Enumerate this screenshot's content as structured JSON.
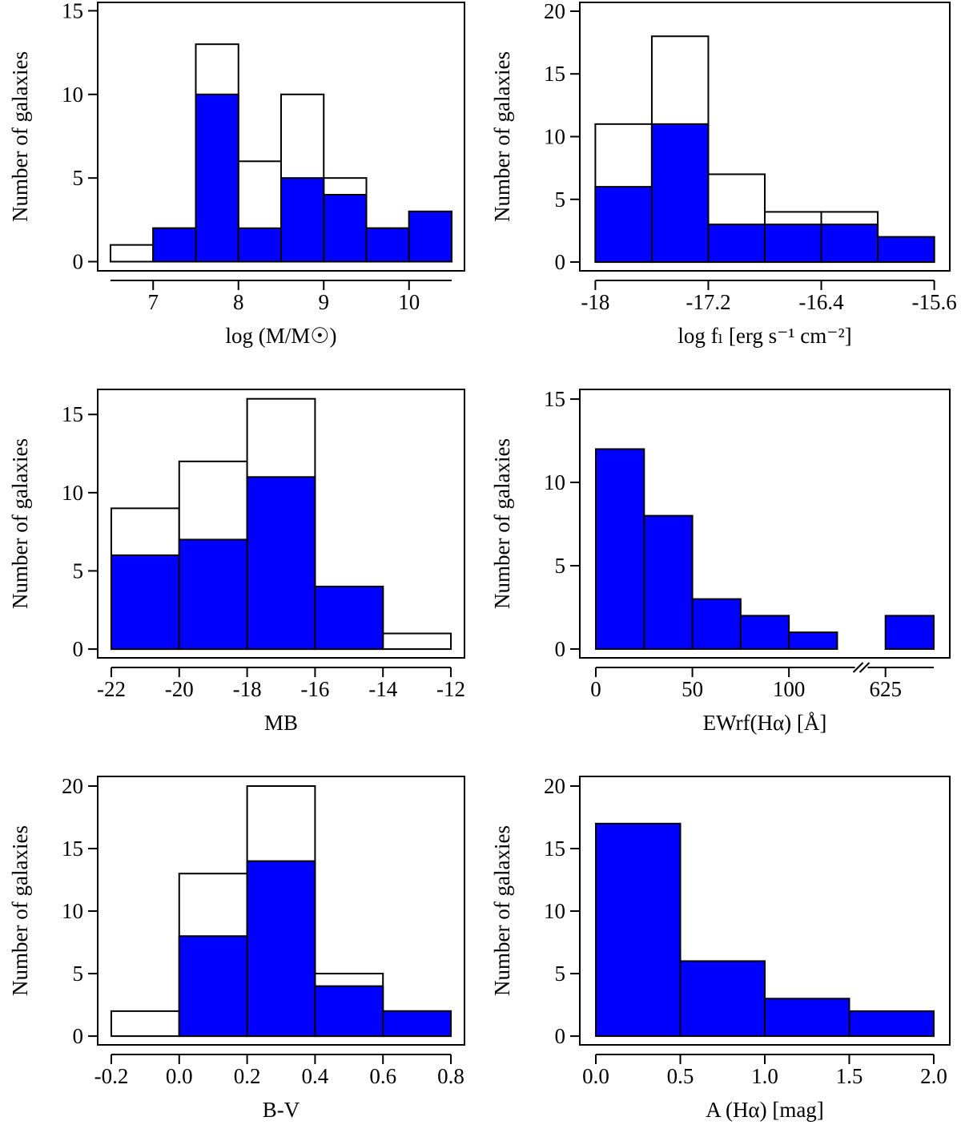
{
  "chart_data": [
    {
      "type": "histogram",
      "x_label": "log (M/M☉)",
      "y_label": "Number of galaxies",
      "bins": [
        6.5,
        7,
        7.5,
        8,
        8.5,
        9,
        9.5,
        10,
        10.5
      ],
      "series": [
        {
          "color": "#ffffff",
          "values": [
            1,
            2,
            13,
            6,
            10,
            5,
            2,
            3
          ]
        },
        {
          "color": "#0000ff",
          "values": [
            0,
            2,
            10,
            2,
            5,
            4,
            2,
            3
          ]
        }
      ],
      "xlim": [
        6.35,
        10.65
      ],
      "ylim": [
        -0.55,
        15.5
      ],
      "xticks": [
        7,
        8,
        9,
        10
      ],
      "yticks": [
        0,
        5,
        10,
        15
      ]
    },
    {
      "type": "histogram",
      "x_label": "log fₗ [erg s⁻¹ cm⁻²]",
      "y_label": "Number of galaxies",
      "bins": [
        -18,
        -17.6,
        -17.2,
        -16.8,
        -16.4,
        -16,
        -15.6
      ],
      "series": [
        {
          "color": "#ffffff",
          "values": [
            11,
            18,
            7,
            4,
            4,
            2
          ]
        },
        {
          "color": "#0000ff",
          "values": [
            6,
            11,
            3,
            3,
            3,
            2
          ]
        }
      ],
      "xlim": [
        -18.11,
        -15.49
      ],
      "ylim": [
        -0.7,
        20.7
      ],
      "xticks": [
        -18,
        -17.2,
        -16.4,
        -15.6
      ],
      "yticks": [
        0,
        5,
        10,
        15,
        20
      ]
    },
    {
      "type": "histogram",
      "x_label": "MB",
      "y_label": "Number of galaxies",
      "bins": [
        -22,
        -20,
        -18,
        -16,
        -14,
        -12
      ],
      "series": [
        {
          "color": "#ffffff",
          "values": [
            9,
            12,
            16,
            4,
            1
          ]
        },
        {
          "color": "#0000ff",
          "values": [
            6,
            7,
            11,
            4,
            0
          ]
        }
      ],
      "xlim": [
        -22.4,
        -11.6
      ],
      "ylim": [
        -0.56,
        16.6
      ],
      "xticks": [
        -22,
        -20,
        -18,
        -16,
        -14,
        -12
      ],
      "yticks": [
        0,
        5,
        10,
        15
      ]
    },
    {
      "type": "histogram",
      "x_label": "EWrf(Hα) [Å]",
      "y_label": "Number of galaxies",
      "bins": [
        0,
        25,
        50,
        75,
        100,
        125,
        625,
        650
      ],
      "series": [
        {
          "color": "#0000ff",
          "values": [
            12,
            8,
            3,
            2,
            1,
            0,
            2
          ]
        }
      ],
      "xbreak": [
        150,
        625
      ],
      "xlim": [
        -8.3,
        658.3
      ],
      "ylim": [
        -0.53,
        15.58
      ],
      "xticks": [
        0,
        50,
        100,
        625
      ],
      "yticks": [
        0,
        5,
        10,
        15
      ]
    },
    {
      "type": "histogram",
      "x_label": "B-V",
      "y_label": "Number of galaxies",
      "bins": [
        -0.2,
        0,
        0.2,
        0.4,
        0.6,
        0.8
      ],
      "series": [
        {
          "color": "#ffffff",
          "values": [
            2,
            13,
            20,
            5,
            2
          ]
        },
        {
          "color": "#0000ff",
          "values": [
            0,
            8,
            14,
            4,
            2
          ]
        }
      ],
      "xlim": [
        -0.24,
        0.84
      ],
      "ylim": [
        -0.7,
        20.77
      ],
      "xticks": [
        -0.2,
        {
          "value": 0,
          "label": "0.0"
        },
        0.2,
        0.4,
        0.6,
        0.8
      ],
      "yticks": [
        0,
        5,
        10,
        15,
        20
      ]
    },
    {
      "type": "histogram",
      "x_label": "A (Hα) [mag]",
      "y_label": "Number of galaxies",
      "bins": [
        0,
        0.5,
        1,
        1.5,
        2
      ],
      "series": [
        {
          "color": "#0000ff",
          "values": [
            17,
            6,
            3,
            2
          ]
        }
      ],
      "xlim": [
        -0.095,
        2.095
      ],
      "ylim": [
        -0.7,
        20.77
      ],
      "xticks": [
        {
          "value": 0,
          "label": "0.0"
        },
        0.5,
        {
          "value": 1,
          "label": "1.0"
        },
        1.5,
        {
          "value": 2,
          "label": "2.0"
        }
      ],
      "yticks": [
        0,
        5,
        10,
        15,
        20
      ]
    }
  ]
}
